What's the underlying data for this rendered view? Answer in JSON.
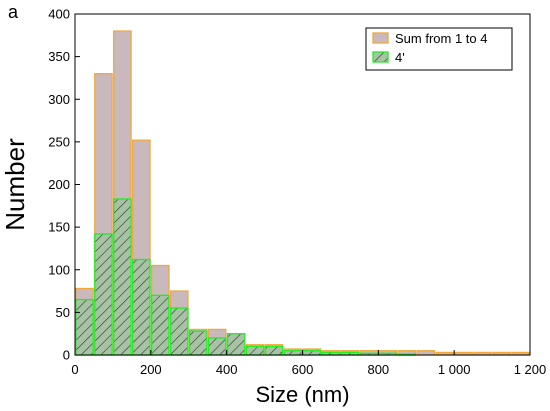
{
  "panel_letter": "a",
  "chart_data": {
    "type": "bar",
    "title": "",
    "xlabel": "Size (nm)",
    "ylabel": "Number",
    "xlim": [
      0,
      1200
    ],
    "ylim": [
      0,
      400
    ],
    "bin_width": 50,
    "bin_edges": [
      0,
      50,
      100,
      150,
      200,
      250,
      300,
      350,
      400,
      450,
      500,
      550,
      600,
      650,
      700,
      750,
      800,
      850,
      900,
      950,
      1000,
      1050,
      1100,
      1150,
      1200
    ],
    "x_ticks": [
      0,
      200,
      400,
      600,
      800,
      1000,
      1200
    ],
    "x_tick_labels": [
      "0",
      "200",
      "400",
      "600",
      "800",
      "1 000",
      "1 200"
    ],
    "y_ticks": [
      0,
      50,
      100,
      150,
      200,
      250,
      300,
      350,
      400
    ],
    "y_tick_labels": [
      "0",
      "50",
      "100",
      "150",
      "200",
      "250",
      "300",
      "350",
      "400"
    ],
    "grid": false,
    "legend_position": "top-right",
    "series": [
      {
        "name": "Sum from 1 to 4",
        "fill": "#c9b9bd",
        "edge": "#f0a83c",
        "hatch": false,
        "values": [
          78,
          330,
          380,
          252,
          105,
          75,
          30,
          30,
          20,
          12,
          12,
          7,
          7,
          5,
          5,
          5,
          5,
          5,
          5,
          3,
          3,
          3,
          3,
          3
        ]
      },
      {
        "name": "4'",
        "fill": "#a8c2a5",
        "edge": "#22ee22",
        "hatch": true,
        "values": [
          65,
          142,
          183,
          112,
          70,
          55,
          28,
          20,
          25,
          10,
          10,
          5,
          5,
          3,
          3,
          2,
          2,
          1,
          0,
          0,
          0,
          0,
          0,
          0
        ]
      }
    ]
  }
}
